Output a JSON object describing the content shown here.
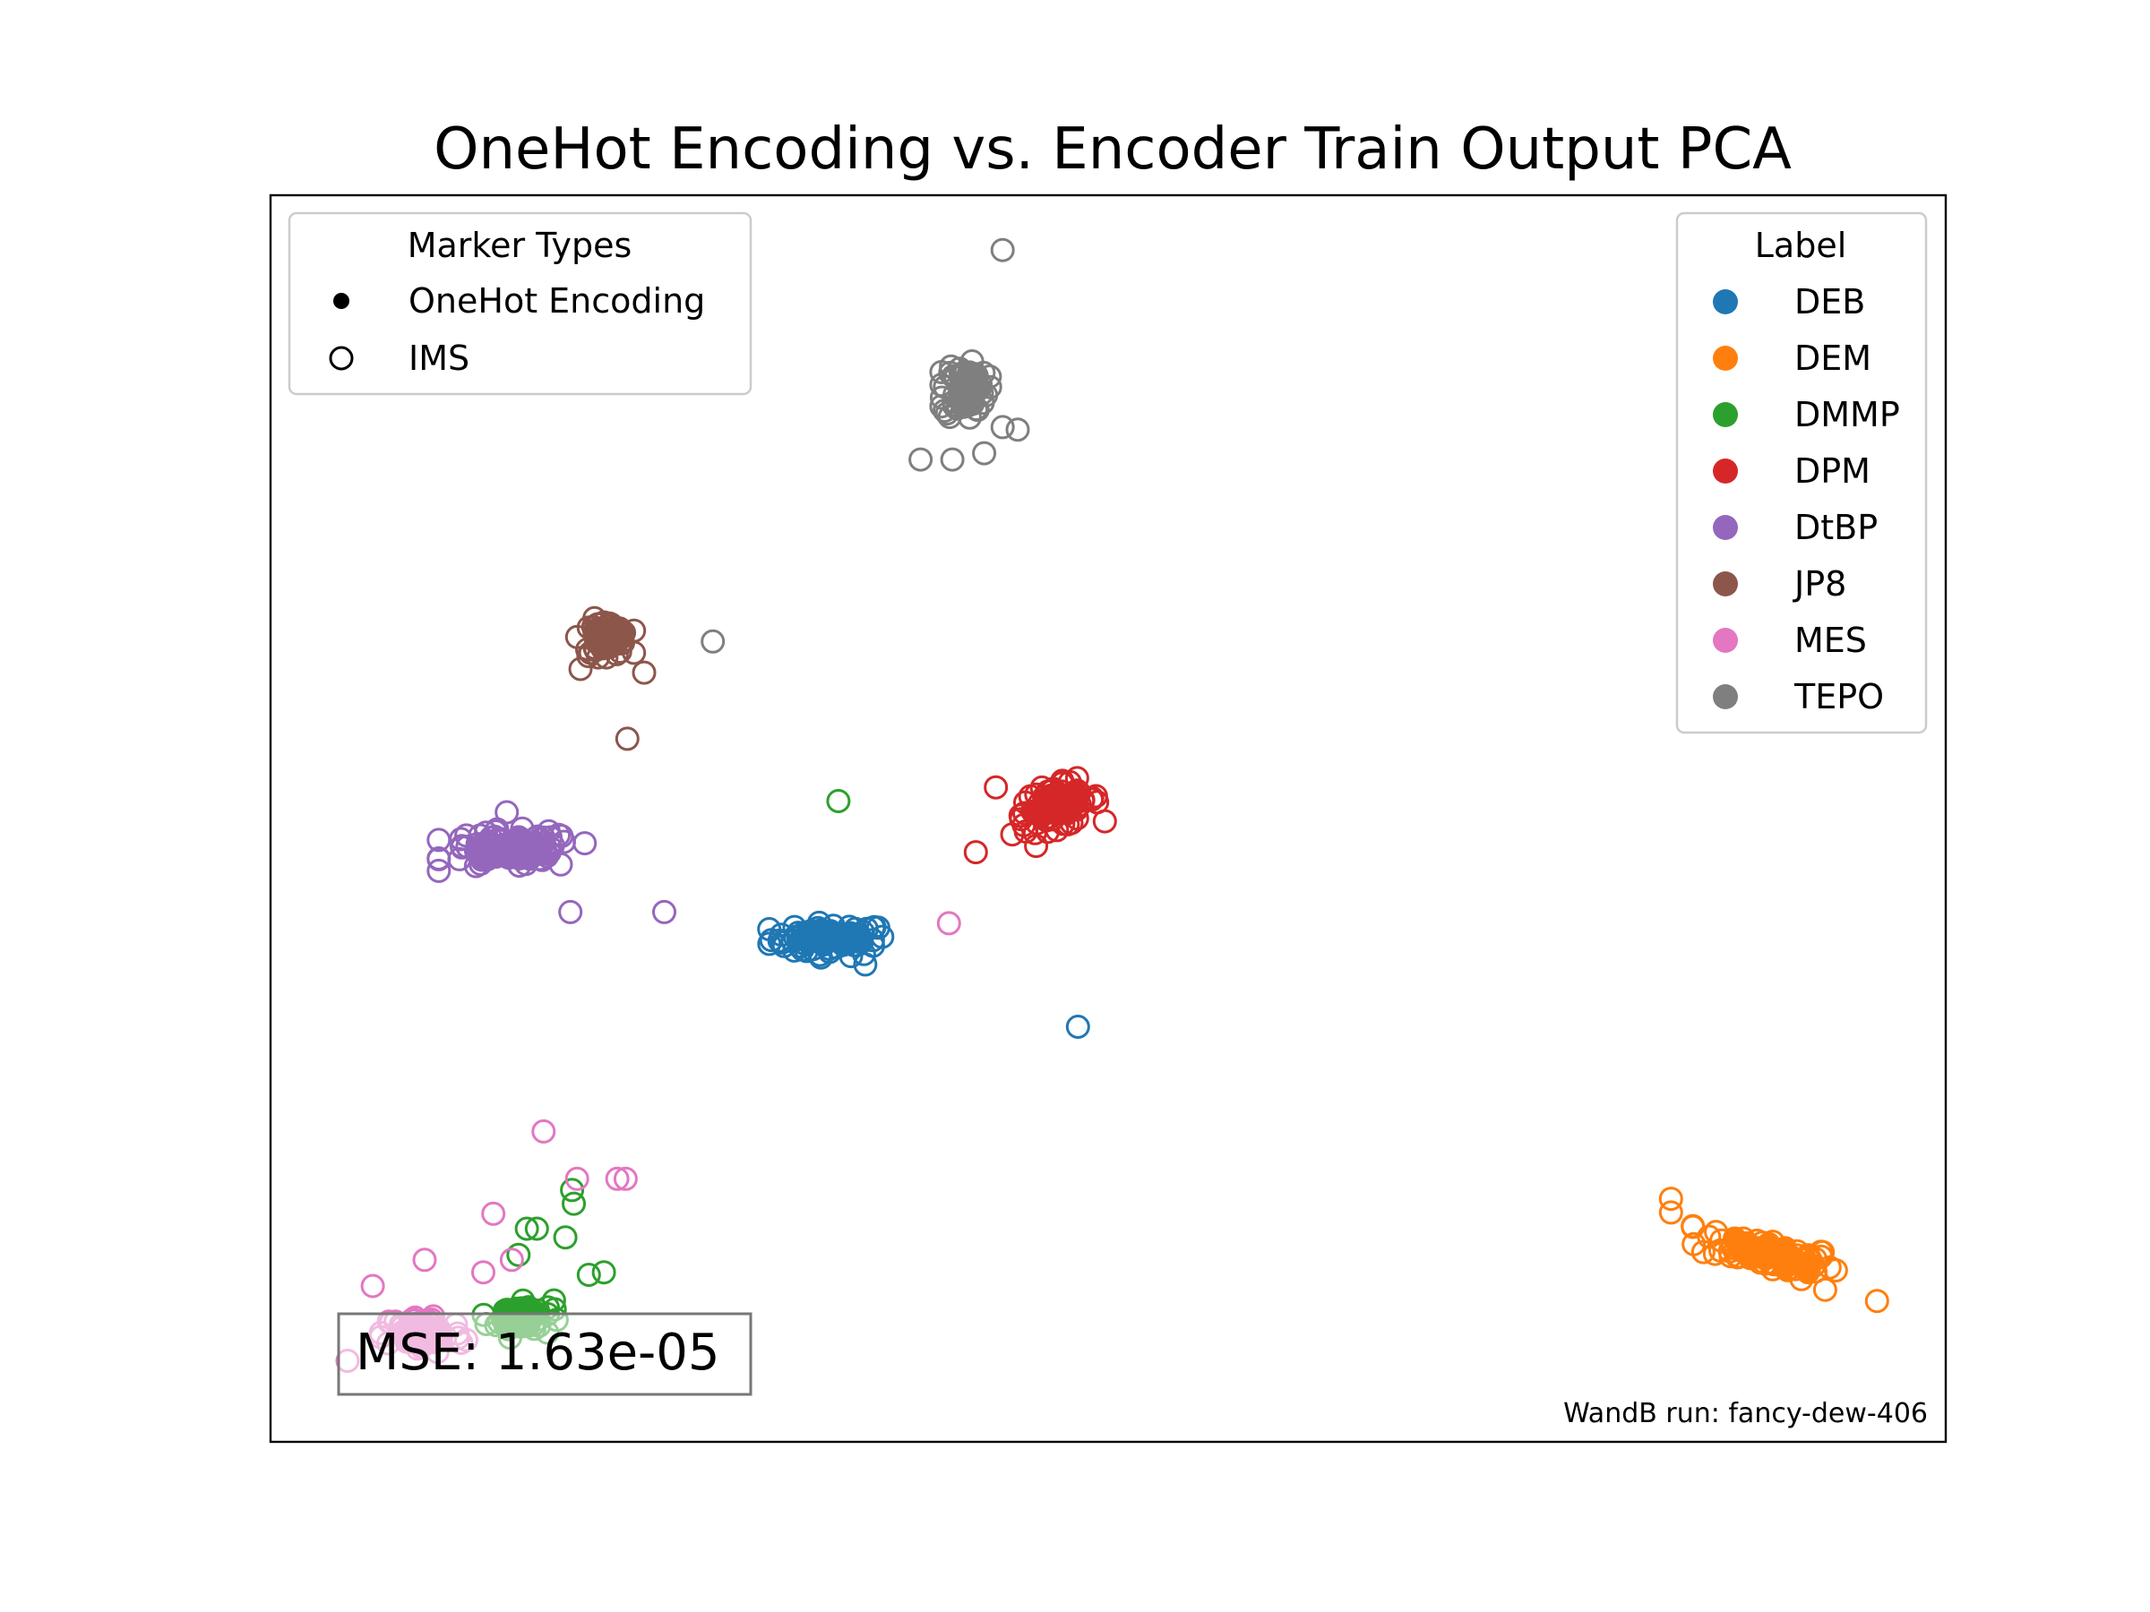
{
  "chart_data": {
    "type": "scatter",
    "title": "OneHot Encoding vs. Encoder Train Output PCA",
    "xlabel": "",
    "ylabel": "",
    "xlim": [
      0,
      100
    ],
    "ylim": [
      0,
      100
    ],
    "axes_ticks": "none",
    "grid": false,
    "marker_legend": {
      "title": "Marker Types",
      "placement": "upper-left",
      "items": [
        {
          "label": "OneHot Encoding",
          "marker": "filled"
        },
        {
          "label": "IMS",
          "marker": "hollow"
        }
      ]
    },
    "label_legend": {
      "title": "Label",
      "placement": "upper-right"
    },
    "series": [
      {
        "name": "DEB",
        "color": "#1f77b4",
        "cluster": {
          "cx": 33.4,
          "cy": 40.3,
          "sx": 3.2,
          "sy": 1.2,
          "n": 70
        },
        "outliers": [
          [
            48.2,
            33.3
          ],
          [
            35.5,
            38.3
          ]
        ]
      },
      {
        "name": "DEM",
        "color": "#ff7f0e",
        "cluster": {
          "cx": 89.5,
          "cy": 15.1,
          "sx": 3.8,
          "sy": 1.3,
          "n": 80,
          "tilt": -0.55
        },
        "outliers": [
          [
            83.6,
            19.5
          ],
          [
            83.6,
            18.4
          ],
          [
            95.9,
            11.3
          ],
          [
            92.8,
            12.2
          ]
        ]
      },
      {
        "name": "DMMP",
        "color": "#2ca02c",
        "cluster": {
          "cx": 14.9,
          "cy": 10.0,
          "sx": 1.8,
          "sy": 1.4,
          "n": 40
        },
        "outliers": [
          [
            33.9,
            51.4
          ],
          [
            18.1,
            19.1
          ],
          [
            15.3,
            17.1
          ],
          [
            14.8,
            15.0
          ],
          [
            17.6,
            16.4
          ],
          [
            19.0,
            13.4
          ],
          [
            19.9,
            13.6
          ],
          [
            18.0,
            20.2
          ],
          [
            15.9,
            17.1
          ]
        ]
      },
      {
        "name": "DPM",
        "color": "#d62728",
        "cluster": {
          "cx": 46.9,
          "cy": 51.0,
          "sx": 2.4,
          "sy": 1.6,
          "n": 75,
          "tilt": 0.45
        },
        "outliers": [
          [
            43.3,
            52.5
          ],
          [
            42.1,
            47.3
          ],
          [
            45.7,
            47.8
          ]
        ]
      },
      {
        "name": "DtBP",
        "color": "#9467bd",
        "cluster": {
          "cx": 14.4,
          "cy": 47.5,
          "sx": 3.6,
          "sy": 1.4,
          "n": 85
        },
        "outliers": [
          [
            23.5,
            42.5
          ],
          [
            17.9,
            42.5
          ],
          [
            14.1,
            50.5
          ]
        ]
      },
      {
        "name": "JP8",
        "color": "#8c564b",
        "cluster": {
          "cx": 20.0,
          "cy": 64.5,
          "sx": 1.4,
          "sy": 1.3,
          "n": 55
        },
        "outliers": [
          [
            21.3,
            56.4
          ],
          [
            22.3,
            61.7
          ],
          [
            18.5,
            62.0
          ]
        ]
      },
      {
        "name": "MES",
        "color": "#e377c2",
        "cluster": {
          "cx": 9.1,
          "cy": 8.7,
          "sx": 2.2,
          "sy": 1.5,
          "n": 60
        },
        "outliers": [
          [
            40.5,
            41.6
          ],
          [
            16.3,
            24.9
          ],
          [
            18.3,
            21.1
          ],
          [
            20.7,
            21.1
          ],
          [
            21.2,
            21.1
          ],
          [
            13.3,
            18.3
          ],
          [
            9.2,
            14.6
          ],
          [
            6.1,
            12.5
          ],
          [
            4.6,
            6.5
          ],
          [
            12.7,
            13.6
          ],
          [
            14.4,
            14.6
          ]
        ]
      },
      {
        "name": "TEPO",
        "color": "#7f7f7f",
        "cluster": {
          "cx": 41.5,
          "cy": 84.5,
          "sx": 1.2,
          "sy": 2.2,
          "n": 60
        },
        "outliers": [
          [
            43.7,
            95.6
          ],
          [
            26.4,
            64.2
          ],
          [
            38.8,
            78.8
          ],
          [
            40.7,
            78.8
          ],
          [
            42.6,
            79.3
          ],
          [
            43.7,
            81.4
          ],
          [
            44.6,
            81.2
          ]
        ]
      }
    ],
    "annotations": {
      "mse": "MSE: 1.63e-05",
      "run": "WandB run: fancy-dew-406"
    }
  }
}
